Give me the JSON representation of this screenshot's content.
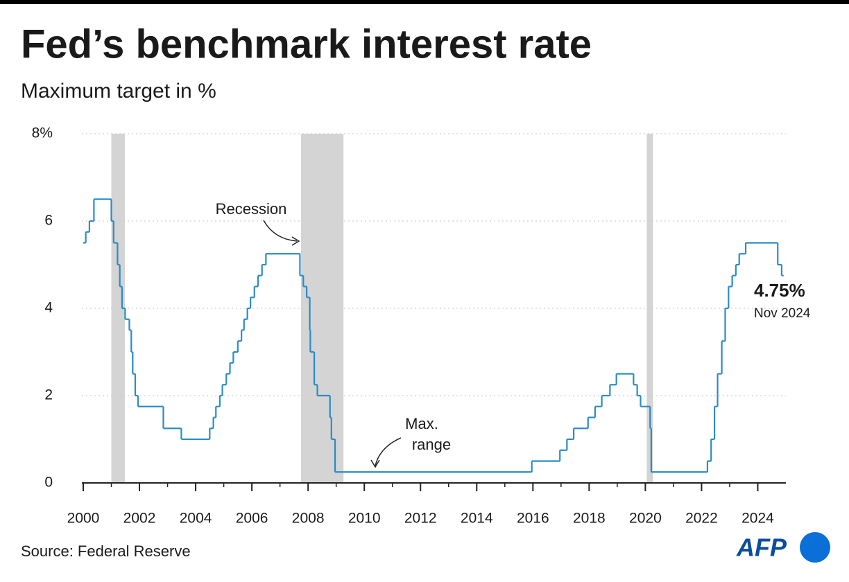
{
  "chart_data": {
    "type": "step",
    "title": "Fed’s benchmark interest rate",
    "subtitle": "Maximum target in %",
    "source": "Source: Federal Reserve",
    "logo": "AFP",
    "annotations": {
      "recession": "Recession",
      "max_range": [
        "Max.",
        "range"
      ],
      "end_value": "4.75%",
      "end_date": "Nov 2024"
    },
    "color": "#2b8cc4",
    "recession_color": "#d4d4d4",
    "recessions": [
      [
        2001.0,
        2001.48
      ],
      [
        2007.75,
        2009.26
      ],
      [
        2020.05,
        2020.27
      ]
    ],
    "x": [
      2000.0,
      2000.09,
      2000.22,
      2000.38,
      2001.0,
      2001.08,
      2001.22,
      2001.3,
      2001.38,
      2001.49,
      2001.64,
      2001.71,
      2001.76,
      2001.85,
      2001.95,
      2002.85,
      2003.49,
      2004.5,
      2004.63,
      2004.72,
      2004.86,
      2004.95,
      2005.09,
      2005.22,
      2005.34,
      2005.5,
      2005.63,
      2005.72,
      2005.84,
      2005.95,
      2006.09,
      2006.22,
      2006.36,
      2006.5,
      2007.71,
      2007.83,
      2007.95,
      2008.06,
      2008.08,
      2008.22,
      2008.33,
      2008.78,
      2008.83,
      2008.96,
      2015.96,
      2016.96,
      2017.21,
      2017.45,
      2017.96,
      2018.21,
      2018.45,
      2018.74,
      2018.97,
      2019.58,
      2019.71,
      2019.83,
      2020.17,
      2020.21,
      2022.21,
      2022.34,
      2022.46,
      2022.57,
      2022.72,
      2022.84,
      2022.96,
      2023.09,
      2023.22,
      2023.34,
      2023.57,
      2024.71,
      2024.85,
      2024.92
    ],
    "values": [
      5.5,
      5.75,
      6.0,
      6.5,
      6.0,
      5.5,
      5.0,
      4.5,
      4.0,
      3.75,
      3.5,
      3.0,
      2.5,
      2.0,
      1.75,
      1.25,
      1.0,
      1.25,
      1.5,
      1.75,
      2.0,
      2.25,
      2.5,
      2.75,
      3.0,
      3.25,
      3.5,
      3.75,
      4.0,
      4.25,
      4.5,
      4.75,
      5.0,
      5.25,
      4.75,
      4.5,
      4.25,
      3.5,
      3.0,
      2.25,
      2.0,
      1.5,
      1.0,
      0.25,
      0.5,
      0.75,
      1.0,
      1.25,
      1.5,
      1.75,
      2.0,
      2.25,
      2.5,
      2.25,
      2.0,
      1.75,
      1.25,
      0.25,
      0.5,
      1.0,
      1.75,
      2.5,
      3.25,
      4.0,
      4.5,
      4.75,
      5.0,
      5.25,
      5.5,
      5.0,
      4.75,
      4.75
    ],
    "xlim": [
      2000,
      2025
    ],
    "xticks": [
      2000,
      2002,
      2004,
      2006,
      2008,
      2010,
      2012,
      2014,
      2016,
      2018,
      2020,
      2022,
      2024
    ],
    "ylim": [
      0,
      8
    ],
    "yticks": [
      0,
      2,
      4,
      6,
      {
        "value": 8,
        "label": "8%"
      }
    ],
    "grid": true
  }
}
